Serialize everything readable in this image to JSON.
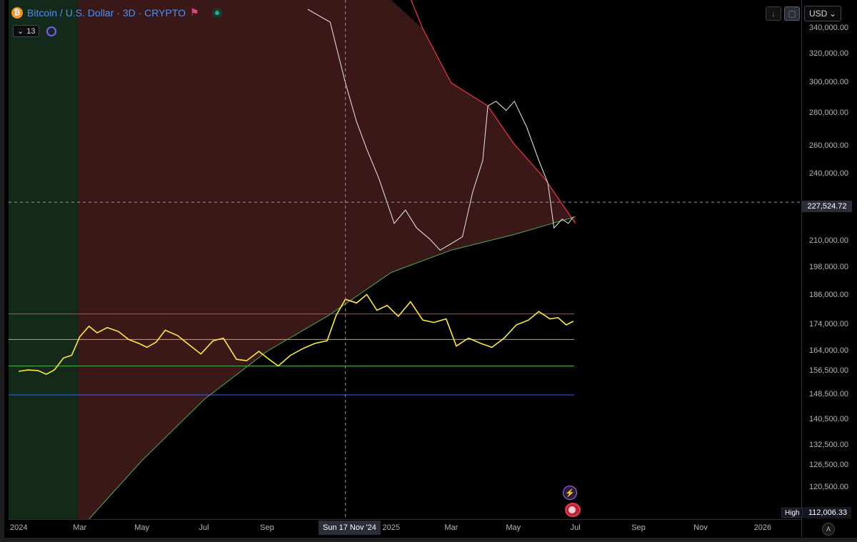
{
  "header": {
    "coin_symbol": "₿",
    "title": "Bitcoin / U.S. Dollar · 3D · CRYPTO"
  },
  "indicator": {
    "collapse_glyph": "⌄",
    "count": "13"
  },
  "toolbar": {
    "download_glyph": "↓",
    "screen_glyph": "▢",
    "currency": "USD",
    "currency_caret": "⌄"
  },
  "y_axis": {
    "ticks": [
      {
        "label": "340,000.00",
        "value": 340000
      },
      {
        "label": "320,000.00",
        "value": 320000
      },
      {
        "label": "300,000.00",
        "value": 300000
      },
      {
        "label": "280,000.00",
        "value": 280000
      },
      {
        "label": "260,000.00",
        "value": 260000
      },
      {
        "label": "240,000.00",
        "value": 240000
      },
      {
        "label": "210,000.00",
        "value": 210000
      },
      {
        "label": "198,000.00",
        "value": 198000
      },
      {
        "label": "186,000.00",
        "value": 186000
      },
      {
        "label": "174,000.00",
        "value": 174000
      },
      {
        "label": "164,000.00",
        "value": 164000
      },
      {
        "label": "156,500.00",
        "value": 156500
      },
      {
        "label": "148,500.00",
        "value": 148500
      },
      {
        "label": "140,500.00",
        "value": 140500
      },
      {
        "label": "132,500.00",
        "value": 132500
      },
      {
        "label": "126,500.00",
        "value": 126500
      },
      {
        "label": "120,500.00",
        "value": 120500
      }
    ],
    "crosshair_price": "227,524.72",
    "high_label": "High",
    "high_value": "112,006.33"
  },
  "x_axis": {
    "ticks": [
      {
        "label": "2024",
        "date": "2024-01-01"
      },
      {
        "label": "Mar",
        "date": "2024-03-01"
      },
      {
        "label": "May",
        "date": "2024-05-01"
      },
      {
        "label": "Jul",
        "date": "2024-07-01"
      },
      {
        "label": "Sep",
        "date": "2024-09-01"
      },
      {
        "label": "2025",
        "date": "2025-01-01"
      },
      {
        "label": "Mar",
        "date": "2025-03-01"
      },
      {
        "label": "May",
        "date": "2025-05-01"
      },
      {
        "label": "Jul",
        "date": "2025-07-01"
      },
      {
        "label": "Sep",
        "date": "2025-09-01"
      },
      {
        "label": "Nov",
        "date": "2025-11-01"
      },
      {
        "label": "2026",
        "date": "2026-01-01"
      }
    ],
    "crosshair_date": "Sun 17 Nov '24",
    "auto_label": "A"
  },
  "colors": {
    "bg": "#000000",
    "green_zone": "#13291a",
    "red_zone": "#3a1818",
    "btc_line": "#ffeb3b",
    "model_line": "#d9d9d9",
    "upper_curve": "#f23645",
    "lower_curve": "#4caf50",
    "h_red": "#f23645",
    "h_orange": "#ff9800",
    "h_green": "#4caf50",
    "h_blue": "#2962ff",
    "crosshair": "#9598a1"
  },
  "chart_data": {
    "type": "line",
    "series": [
      {
        "values": [
          [
            "2024-01-01",
            156500
          ],
          [
            "2024-01-10",
            157000
          ],
          [
            "2024-01-20",
            156800
          ],
          [
            "2024-01-28",
            155500
          ],
          [
            "2024-02-05",
            157000
          ],
          [
            "2024-02-14",
            161500
          ],
          [
            "2024-02-22",
            162500
          ],
          [
            "2024-03-01",
            169500
          ],
          [
            "2024-03-10",
            173500
          ],
          [
            "2024-03-18",
            171000
          ],
          [
            "2024-03-28",
            173000
          ],
          [
            "2024-04-08",
            171500
          ],
          [
            "2024-04-18",
            168500
          ],
          [
            "2024-04-28",
            167000
          ],
          [
            "2024-05-06",
            165500
          ],
          [
            "2024-05-15",
            167500
          ],
          [
            "2024-05-24",
            172000
          ],
          [
            "2024-06-05",
            170000
          ],
          [
            "2024-06-18",
            166000
          ],
          [
            "2024-06-28",
            163000
          ],
          [
            "2024-07-10",
            168000
          ],
          [
            "2024-07-20",
            169000
          ],
          [
            "2024-08-02",
            161000
          ],
          [
            "2024-08-12",
            160500
          ],
          [
            "2024-08-24",
            164000
          ],
          [
            "2024-09-03",
            161000
          ],
          [
            "2024-09-12",
            158500
          ],
          [
            "2024-09-24",
            162500
          ],
          [
            "2024-10-06",
            165000
          ],
          [
            "2024-10-18",
            167000
          ],
          [
            "2024-10-30",
            168000
          ],
          [
            "2024-11-08",
            178000
          ],
          [
            "2024-11-17",
            184500
          ],
          [
            "2024-11-28",
            183000
          ],
          [
            "2024-12-08",
            186500
          ],
          [
            "2024-12-18",
            180000
          ],
          [
            "2024-12-28",
            182000
          ],
          [
            "2025-01-08",
            177500
          ],
          [
            "2025-01-20",
            183500
          ],
          [
            "2025-02-01",
            176000
          ],
          [
            "2025-02-12",
            175000
          ],
          [
            "2025-02-24",
            176500
          ],
          [
            "2025-03-06",
            166000
          ],
          [
            "2025-03-18",
            169000
          ],
          [
            "2025-03-30",
            167000
          ],
          [
            "2025-04-10",
            165500
          ],
          [
            "2025-04-22",
            169000
          ],
          [
            "2025-05-04",
            174000
          ],
          [
            "2025-05-16",
            176000
          ],
          [
            "2025-05-26",
            179500
          ],
          [
            "2025-06-06",
            176500
          ],
          [
            "2025-06-14",
            177000
          ],
          [
            "2025-06-22",
            174000
          ],
          [
            "2025-06-29",
            175500
          ]
        ]
      },
      {
        "values": [
          [
            "2024-10-11",
            355000
          ],
          [
            "2024-10-22",
            350000
          ],
          [
            "2024-11-02",
            345000
          ],
          [
            "2024-11-17",
            300000
          ],
          [
            "2024-11-28",
            275000
          ],
          [
            "2024-12-08",
            258000
          ],
          [
            "2024-12-20",
            238000
          ],
          [
            "2025-01-04",
            218000
          ],
          [
            "2025-01-15",
            224000
          ],
          [
            "2025-01-26",
            216000
          ],
          [
            "2025-02-08",
            211000
          ],
          [
            "2025-02-18",
            206000
          ],
          [
            "2025-03-01",
            209000
          ],
          [
            "2025-03-12",
            212000
          ],
          [
            "2025-03-22",
            232000
          ],
          [
            "2025-04-01",
            250000
          ],
          [
            "2025-04-06",
            285000
          ],
          [
            "2025-04-14",
            288000
          ],
          [
            "2025-04-24",
            282000
          ],
          [
            "2025-05-02",
            288000
          ],
          [
            "2025-05-14",
            272000
          ],
          [
            "2025-05-26",
            250000
          ],
          [
            "2025-06-04",
            236000
          ],
          [
            "2025-06-10",
            216000
          ],
          [
            "2025-06-18",
            220000
          ],
          [
            "2025-06-24",
            218000
          ],
          [
            "2025-06-29",
            221000
          ]
        ]
      }
    ],
    "upper_curve": [
      [
        "2025-01-01",
        400000
      ],
      [
        "2025-02-01",
        340000
      ],
      [
        "2025-03-01",
        300000
      ],
      [
        "2025-04-06",
        285000
      ],
      [
        "2025-05-01",
        262000
      ],
      [
        "2025-06-01",
        238000
      ],
      [
        "2025-07-01",
        218000
      ]
    ],
    "lower_curve": [
      [
        "2024-03-10",
        112000
      ],
      [
        "2024-05-01",
        128000
      ],
      [
        "2024-07-01",
        147000
      ],
      [
        "2024-09-01",
        164000
      ],
      [
        "2024-11-01",
        178000
      ],
      [
        "2025-01-01",
        196000
      ],
      [
        "2025-03-01",
        206000
      ],
      [
        "2025-05-01",
        213000
      ],
      [
        "2025-07-01",
        221000
      ]
    ],
    "horizontal_levels": [
      {
        "value": 178500,
        "color": "#f23645"
      },
      {
        "value": 168500,
        "color": "#ff9800"
      },
      {
        "value": 158500,
        "color": "#4caf50"
      },
      {
        "value": 148500,
        "color": "#2962ff"
      }
    ],
    "zones": [
      {
        "from": "2023-12-01",
        "to": "2024-02-28",
        "color": "#13291a"
      },
      {
        "from": "2024-02-28",
        "to": "2025-07-01",
        "color": "#3a1818"
      }
    ],
    "crosshair": {
      "date": "2024-11-17",
      "price": 227524.72
    },
    "x_range": [
      "2023-12-22",
      "2026-02-08"
    ]
  }
}
